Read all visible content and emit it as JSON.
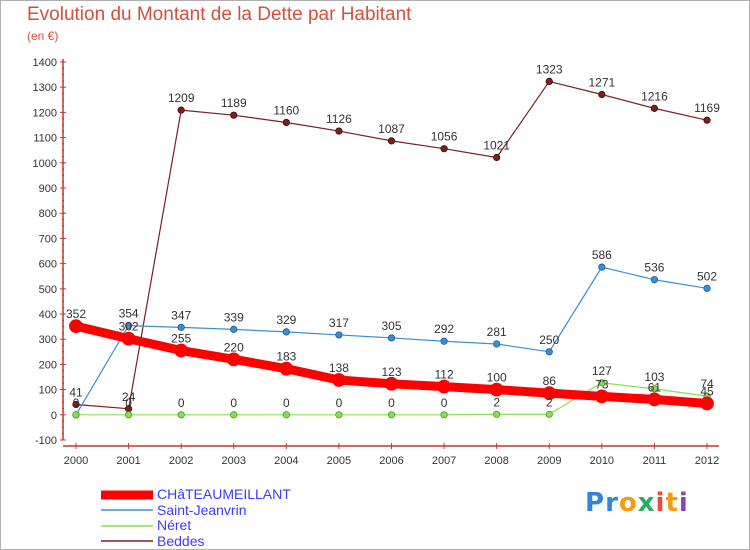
{
  "chart_data": {
    "type": "line",
    "title": "Evolution du Montant de la Dette par Habitant",
    "subtitle": "(en €)",
    "xlabel": "",
    "ylabel": "",
    "categories": [
      "2000",
      "2001",
      "2002",
      "2003",
      "2004",
      "2005",
      "2006",
      "2007",
      "2008",
      "2009",
      "2010",
      "2011",
      "2012"
    ],
    "ylim": [
      -100,
      1400
    ],
    "yticks": [
      -100,
      0,
      100,
      200,
      300,
      400,
      500,
      600,
      700,
      800,
      900,
      1000,
      1100,
      1200,
      1300,
      1400
    ],
    "grid": false,
    "legend_position": "bottom-left",
    "series": [
      {
        "name": "CHâTEAUMEILLANT",
        "color": "#ff0000",
        "values": [
          352,
          302,
          255,
          220,
          183,
          138,
          123,
          112,
          100,
          86,
          73,
          61,
          45
        ],
        "labels": [
          "352",
          "302",
          "255",
          "220",
          "183",
          "138",
          "123",
          "112",
          "100",
          "86",
          "73",
          "61",
          "45"
        ]
      },
      {
        "name": "Saint-Jeanvrin",
        "color": "#3a8fd3",
        "values": [
          0,
          354,
          347,
          339,
          329,
          317,
          305,
          292,
          281,
          250,
          586,
          536,
          502
        ],
        "labels": [
          "",
          "354",
          "347",
          "339",
          "329",
          "317",
          "305",
          "292",
          "281",
          "250",
          "586",
          "536",
          "502"
        ]
      },
      {
        "name": "Néret",
        "color": "#88dd55",
        "values": [
          0,
          0,
          0,
          0,
          0,
          0,
          0,
          0,
          2,
          2,
          127,
          103,
          74
        ],
        "labels": [
          "0",
          "0",
          "0",
          "0",
          "0",
          "0",
          "0",
          "0",
          "2",
          "2",
          "127",
          "103",
          "74"
        ]
      },
      {
        "name": "Beddes",
        "color": "#7b1f1f",
        "values": [
          41,
          24,
          1209,
          1189,
          1160,
          1126,
          1087,
          1056,
          1021,
          1323,
          1271,
          1216,
          1169
        ],
        "labels": [
          "41",
          "24",
          "1209",
          "1189",
          "1160",
          "1126",
          "1087",
          "1056",
          "1021",
          "1323",
          "1271",
          "1216",
          "1169"
        ]
      }
    ]
  },
  "logo": {
    "letters": [
      "P",
      "r",
      "o",
      "x",
      "i",
      "t",
      "i"
    ],
    "colors": [
      "#2e86de",
      "#2e86de",
      "#f39c12",
      "#27ae60",
      "#e74c3c",
      "#f39c12",
      "#8e44ad"
    ]
  }
}
